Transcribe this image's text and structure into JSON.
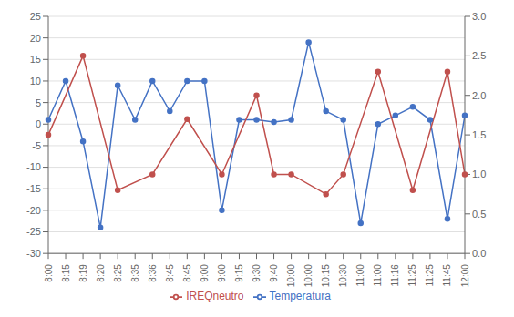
{
  "chart_data": {
    "type": "line",
    "categories": [
      "8:00",
      "8:15",
      "8:19",
      "8:20",
      "8:25",
      "8:35",
      "8:36",
      "8:45",
      "8:45",
      "9:00",
      "9:00",
      "9:15",
      "9:30",
      "9:40",
      "10:00",
      "10:00",
      "10:15",
      "10:30",
      "11:00",
      "11:00",
      "11:16",
      "11:25",
      "11:25",
      "11:45",
      "12:00"
    ],
    "series": [
      {
        "name": "Temperatura",
        "color": "#4472C4",
        "marker": "circle",
        "axis": "y",
        "values": [
          1,
          10,
          -4,
          -24,
          9,
          1,
          10,
          3,
          10,
          10,
          -20,
          1,
          1,
          0.5,
          1,
          19,
          3,
          1,
          -23,
          0,
          2,
          4,
          1,
          -22,
          2
        ]
      },
      {
        "name": "IREQneutro",
        "color": "#C0504D",
        "marker": "circle",
        "axis": "y2",
        "values": [
          1.5,
          null,
          2.5,
          null,
          0.8,
          null,
          1.0,
          null,
          1.7,
          null,
          1.0,
          null,
          2.0,
          1.0,
          1.0,
          null,
          0.75,
          1.0,
          null,
          2.3,
          null,
          0.8,
          null,
          2.3,
          1.0
        ]
      }
    ],
    "ylim": [
      -30,
      25
    ],
    "yticks": [
      -30,
      -25,
      -20,
      -15,
      -10,
      -5,
      0,
      5,
      10,
      15,
      20,
      25
    ],
    "y2lim": [
      0,
      3
    ],
    "y2ticks": [
      {
        "value": 0,
        "label": "0.0"
      },
      0.5,
      {
        "value": 1,
        "label": "1.0"
      },
      1.5,
      {
        "value": 2,
        "label": "2.0"
      },
      2.5,
      {
        "value": 3,
        "label": "3.0"
      }
    ],
    "grid": true,
    "legend": "bottom"
  }
}
